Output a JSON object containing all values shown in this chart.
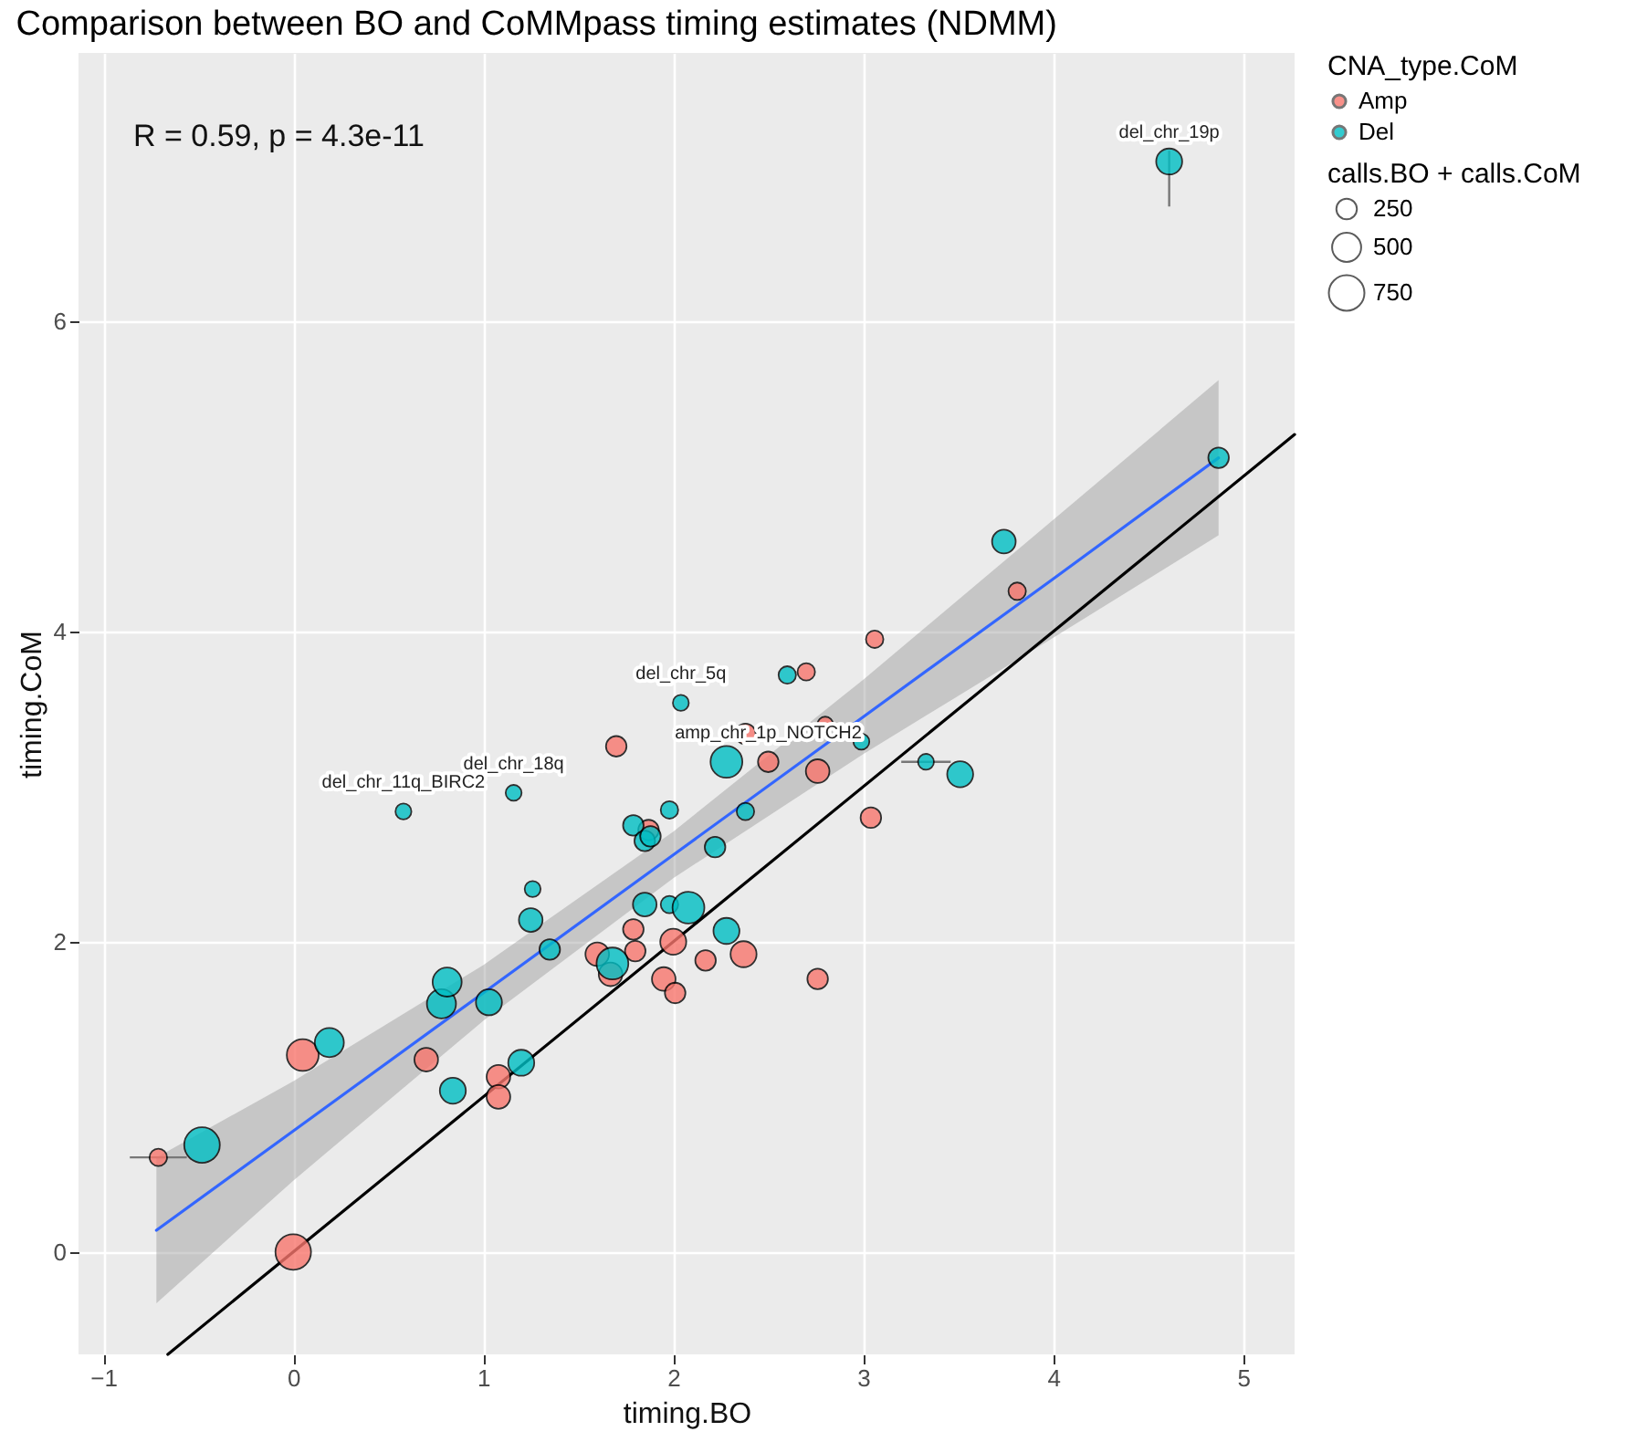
{
  "chart_data": {
    "type": "bubble",
    "title": "Comparison between BO and CoMMpass timing estimates (NDMM)",
    "xlabel": "timing.BO",
    "ylabel": "timing.CoM",
    "legend_title": [
      "CNA_type.CoM",
      "calls.BO + calls.CoM"
    ],
    "size_legend": [
      250,
      500,
      750
    ],
    "legend": "right",
    "grid": true,
    "xlim": [
      -1.13,
      5.27
    ],
    "ylim": [
      -0.66,
      7.73
    ],
    "xticks": [
      -1,
      0,
      1,
      2,
      3,
      4,
      5
    ],
    "yticks": [
      0,
      2,
      4,
      6
    ],
    "annotations": [
      "R = 0.59, p = 4.3e-11",
      {
        "text": "del_chr_19p",
        "x": 4.61,
        "y": 7.03
      },
      {
        "text": "del_chr_5q",
        "x": 2.04,
        "y": 3.54
      },
      {
        "text": "amp_chr_1p_NOTCH2",
        "x": 2.5,
        "y": 3.16
      },
      {
        "text": "del_chr_18q",
        "x": 1.16,
        "y": 2.96
      },
      {
        "text": "del_chr_11q_BIRC2",
        "x": 0.58,
        "y": 2.84
      }
    ],
    "series": [
      {
        "name": "Amp",
        "color": "#f8766d",
        "x": [
          -0.71,
          0.0,
          0.05,
          0.7,
          1.08,
          1.08,
          1.6,
          1.67,
          1.79,
          1.8,
          1.95,
          2.0,
          2.01,
          2.17,
          2.37,
          2.76,
          3.04,
          2.76,
          2.38,
          2.5,
          2.7,
          3.06,
          3.81,
          1.7,
          1.87,
          2.8
        ],
        "values": [
          0.61,
          0.0,
          1.27,
          1.24,
          1.13,
          1.0,
          1.92,
          1.79,
          2.08,
          1.94,
          1.76,
          2.0,
          1.67,
          1.88,
          1.92,
          1.76,
          2.8,
          3.1,
          3.34,
          3.16,
          3.74,
          3.95,
          4.26,
          3.26,
          2.72,
          3.4
        ],
        "sizes": [
          180,
          750,
          600,
          330,
          330,
          330,
          330,
          330,
          250,
          250,
          330,
          400,
          250,
          250,
          400,
          250,
          250,
          330,
          250,
          250,
          180,
          180,
          180,
          250,
          250,
          150
        ],
        "xerrors": [
          [
            -0.86,
            -0.56
          ],
          null,
          null,
          null,
          null,
          null,
          null,
          null,
          null,
          null,
          null,
          null,
          null,
          null,
          null,
          null,
          null,
          null,
          null,
          null,
          null,
          null,
          null,
          null,
          null,
          [
            2.68,
            2.92
          ]
        ]
      },
      {
        "name": "Del",
        "color": "#00bfc4",
        "x": [
          -0.48,
          0.19,
          0.78,
          0.81,
          0.84,
          1.03,
          1.2,
          1.25,
          1.26,
          1.35,
          1.68,
          1.79,
          1.85,
          1.88,
          1.85,
          1.98,
          2.08,
          2.28,
          2.22,
          2.38,
          1.98,
          2.28,
          2.99,
          3.33,
          3.51,
          3.74,
          4.87,
          4.61,
          2.04,
          2.6,
          1.16,
          0.58
        ],
        "values": [
          0.69,
          1.35,
          1.6,
          1.74,
          1.04,
          1.61,
          1.22,
          2.14,
          2.34,
          1.95,
          1.86,
          2.75,
          2.65,
          2.68,
          2.24,
          2.24,
          2.22,
          2.07,
          2.61,
          2.84,
          2.85,
          3.16,
          3.29,
          3.16,
          3.08,
          4.58,
          5.12,
          7.03,
          3.54,
          3.72,
          2.96,
          2.84
        ],
        "sizes": [
          750,
          500,
          500,
          500,
          400,
          400,
          400,
          330,
          150,
          250,
          600,
          250,
          250,
          250,
          330,
          180,
          600,
          400,
          250,
          180,
          180,
          600,
          150,
          150,
          400,
          330,
          250,
          400,
          150,
          180,
          150,
          150
        ],
        "errors": [
          null,
          null,
          null,
          null,
          null,
          null,
          null,
          null,
          null,
          null,
          null,
          null,
          null,
          null,
          null,
          null,
          null,
          null,
          null,
          null,
          null,
          null,
          null,
          null,
          null,
          null,
          null,
          [
            6.74,
            7.1
          ],
          null,
          null,
          null,
          null
        ],
        "xerrors": [
          null,
          null,
          null,
          null,
          null,
          null,
          null,
          null,
          null,
          null,
          null,
          null,
          null,
          null,
          null,
          null,
          null,
          null,
          null,
          null,
          null,
          null,
          null,
          [
            3.2,
            3.46
          ],
          null,
          null,
          null,
          null,
          null,
          null,
          null,
          null
        ]
      },
      {
        "type": "line",
        "color": "#3366ff",
        "x": [
          -0.72,
          0,
          1,
          2,
          3,
          4,
          4.87
        ],
        "values": [
          0.14,
          0.78,
          1.67,
          2.56,
          3.45,
          4.34,
          5.12
        ],
        "lower": [
          -0.33,
          0.46,
          1.49,
          2.41,
          3.21,
          3.96,
          4.62
        ],
        "upper": [
          0.61,
          1.1,
          1.85,
          2.71,
          3.69,
          4.72,
          5.62
        ]
      },
      {
        "type": "line",
        "color": "#000000",
        "x": [
          -0.66,
          5.27
        ],
        "values": [
          -0.66,
          5.27
        ]
      }
    ]
  }
}
